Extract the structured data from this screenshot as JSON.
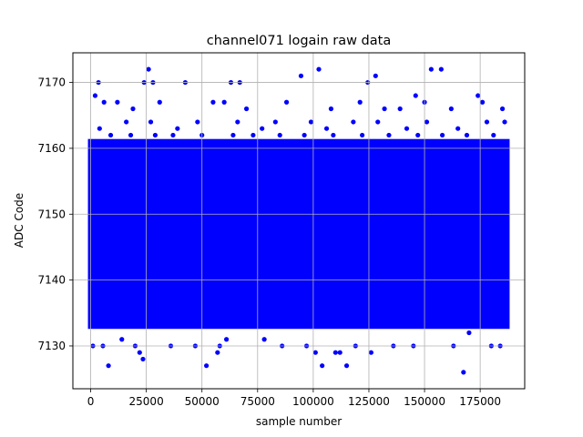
{
  "chart_data": {
    "type": "scatter",
    "title": "channel071 logain raw data",
    "xlabel": "sample number",
    "ylabel": "ADC Code",
    "xlim": [
      -8000,
      195000
    ],
    "ylim": [
      7123.5,
      7174.5
    ],
    "grid": true,
    "marker_color": "#0000ff",
    "x_ticks": [
      0,
      25000,
      50000,
      75000,
      100000,
      125000,
      150000,
      175000
    ],
    "x_tick_labels": [
      "0",
      "25000",
      "50000",
      "75000",
      "100000",
      "125000",
      "150000",
      "175000"
    ],
    "y_ticks": [
      7130,
      7140,
      7150,
      7160,
      7170
    ],
    "y_tick_labels": [
      "7130",
      "7140",
      "7150",
      "7160",
      "7170"
    ],
    "dense_band": {
      "x_range": [
        0,
        187000
      ],
      "y_range": [
        7133,
        7161
      ]
    },
    "outliers": [
      [
        2000,
        7168
      ],
      [
        3500,
        7170
      ],
      [
        8000,
        7127
      ],
      [
        23500,
        7128
      ],
      [
        24000,
        7170
      ],
      [
        26000,
        7172
      ],
      [
        28000,
        7170
      ],
      [
        42500,
        7170
      ],
      [
        52000,
        7127
      ],
      [
        57000,
        7129
      ],
      [
        63000,
        7170
      ],
      [
        67000,
        7170
      ],
      [
        94500,
        7171
      ],
      [
        102500,
        7172
      ],
      [
        104000,
        7127
      ],
      [
        115000,
        7127
      ],
      [
        121000,
        7167
      ],
      [
        124500,
        7170
      ],
      [
        126000,
        7129
      ],
      [
        128000,
        7171
      ],
      [
        146000,
        7168
      ],
      [
        153000,
        7172
      ],
      [
        157500,
        7172
      ],
      [
        167500,
        7126
      ],
      [
        174000,
        7168
      ],
      [
        1000,
        7130
      ],
      [
        5500,
        7130
      ],
      [
        14000,
        7131
      ],
      [
        20000,
        7130
      ],
      [
        22000,
        7129
      ],
      [
        36000,
        7130
      ],
      [
        47000,
        7130
      ],
      [
        58000,
        7130
      ],
      [
        61000,
        7131
      ],
      [
        78000,
        7131
      ],
      [
        86000,
        7130
      ],
      [
        97000,
        7130
      ],
      [
        101000,
        7129
      ],
      [
        110000,
        7129
      ],
      [
        112000,
        7129
      ],
      [
        119000,
        7130
      ],
      [
        136000,
        7130
      ],
      [
        145000,
        7130
      ],
      [
        163000,
        7130
      ],
      [
        170000,
        7132
      ],
      [
        180000,
        7130
      ],
      [
        184000,
        7130
      ],
      [
        6000,
        7167
      ],
      [
        12000,
        7167
      ],
      [
        19000,
        7166
      ],
      [
        31000,
        7167
      ],
      [
        55000,
        7167
      ],
      [
        60000,
        7167
      ],
      [
        70000,
        7166
      ],
      [
        88000,
        7167
      ],
      [
        108000,
        7166
      ],
      [
        132000,
        7166
      ],
      [
        139000,
        7166
      ],
      [
        150000,
        7167
      ],
      [
        162000,
        7166
      ],
      [
        176000,
        7167
      ],
      [
        185000,
        7166
      ]
    ],
    "dense_jitter": [
      [
        4000,
        7163
      ],
      [
        16000,
        7164
      ],
      [
        27000,
        7164
      ],
      [
        39000,
        7163
      ],
      [
        48000,
        7164
      ],
      [
        66000,
        7164
      ],
      [
        77000,
        7163
      ],
      [
        83000,
        7164
      ],
      [
        99000,
        7164
      ],
      [
        106000,
        7163
      ],
      [
        118000,
        7164
      ],
      [
        129000,
        7164
      ],
      [
        142000,
        7163
      ],
      [
        151000,
        7164
      ],
      [
        165000,
        7163
      ],
      [
        178000,
        7164
      ],
      [
        186000,
        7164
      ],
      [
        3000,
        7134
      ],
      [
        11000,
        7133
      ],
      [
        21000,
        7134
      ],
      [
        33000,
        7133
      ],
      [
        44000,
        7134
      ],
      [
        53000,
        7133
      ],
      [
        68000,
        7134
      ],
      [
        80000,
        7133
      ],
      [
        91000,
        7134
      ],
      [
        103000,
        7133
      ],
      [
        116000,
        7134
      ],
      [
        125000,
        7133
      ],
      [
        138000,
        7134
      ],
      [
        148000,
        7133
      ],
      [
        159000,
        7134
      ],
      [
        171000,
        7133
      ],
      [
        182000,
        7134
      ],
      [
        9000,
        7162
      ],
      [
        18000,
        7162
      ],
      [
        29000,
        7162
      ],
      [
        37000,
        7162
      ],
      [
        50000,
        7162
      ],
      [
        64000,
        7162
      ],
      [
        73000,
        7162
      ],
      [
        85000,
        7162
      ],
      [
        96000,
        7162
      ],
      [
        109000,
        7162
      ],
      [
        122000,
        7162
      ],
      [
        134000,
        7162
      ],
      [
        147000,
        7162
      ],
      [
        158000,
        7162
      ],
      [
        169000,
        7162
      ],
      [
        181000,
        7162
      ],
      [
        7000,
        7135
      ],
      [
        17000,
        7135
      ],
      [
        26000,
        7135
      ],
      [
        38000,
        7135
      ],
      [
        49000,
        7135
      ],
      [
        62000,
        7135
      ],
      [
        74000,
        7135
      ],
      [
        87000,
        7135
      ],
      [
        98000,
        7135
      ],
      [
        111000,
        7135
      ],
      [
        123000,
        7135
      ],
      [
        135000,
        7135
      ],
      [
        149000,
        7135
      ],
      [
        161000,
        7135
      ],
      [
        173000,
        7135
      ],
      [
        184000,
        7135
      ]
    ]
  }
}
